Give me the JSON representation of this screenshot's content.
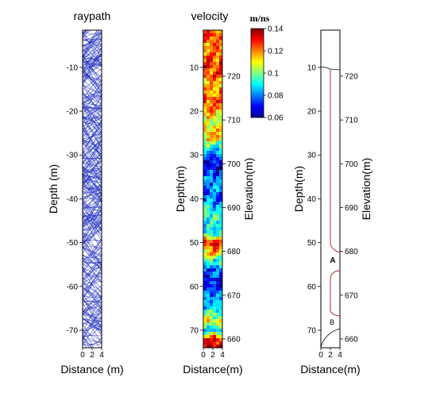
{
  "chart_data": [
    {
      "type": "line",
      "title": "raypath",
      "xlabel": "Distance (m)",
      "ylabel": "Depth (m)",
      "x_ticks": [
        "0",
        "2",
        "4"
      ],
      "y_ticks": [
        "-10",
        "-20",
        "-30",
        "-40",
        "-50",
        "-60",
        "-70"
      ],
      "xlim": [
        0,
        4
      ],
      "ylim": [
        -74,
        -1.5
      ],
      "line_color": "#1f2fbf",
      "description_of_marks": "dense crossing straight and curved ray paths between two boreholes"
    },
    {
      "type": "heatmap",
      "title": "velocity",
      "xlabel": "Distance(m)",
      "ylabel": "Depth(m)",
      "y2label": "Elevation(m)",
      "x_ticks": [
        "0",
        "2",
        "4"
      ],
      "y_ticks": [
        "10",
        "20",
        "30",
        "40",
        "50",
        "60",
        "70"
      ],
      "y2_ticks": [
        "720",
        "710",
        "700",
        "690",
        "680",
        "670",
        "660"
      ],
      "xlim": [
        0,
        4
      ],
      "ylim": [
        1.5,
        74
      ],
      "colorbar": {
        "unit": "m/ns",
        "ticks": [
          "0.14",
          "0.12",
          "0.1",
          "0.08",
          "0.06"
        ],
        "range": [
          0.06,
          0.14
        ]
      },
      "velocity_profile": [
        [
          2,
          0.125
        ],
        [
          6,
          0.118
        ],
        [
          10,
          0.128
        ],
        [
          14,
          0.115
        ],
        [
          18,
          0.125
        ],
        [
          22,
          0.105
        ],
        [
          26,
          0.118
        ],
        [
          28,
          0.095
        ],
        [
          30,
          0.075
        ],
        [
          32,
          0.068
        ],
        [
          36,
          0.082
        ],
        [
          40,
          0.078
        ],
        [
          44,
          0.095
        ],
        [
          48,
          0.088
        ],
        [
          50,
          0.132
        ],
        [
          53,
          0.105
        ],
        [
          56,
          0.075
        ],
        [
          59,
          0.07
        ],
        [
          62,
          0.078
        ],
        [
          65,
          0.09
        ],
        [
          68,
          0.108
        ],
        [
          70,
          0.085
        ],
        [
          72,
          0.13
        ],
        [
          74,
          0.135
        ]
      ]
    },
    {
      "type": "line",
      "xlabel": "Distance(m)",
      "ylabel": "Depth(m)",
      "y2label": "Elevation(m)",
      "x_ticks": [
        "0",
        "2",
        "4"
      ],
      "y_ticks": [
        "10",
        "20",
        "30",
        "40",
        "50",
        "60",
        "70"
      ],
      "y2_ticks": [
        "720",
        "710",
        "700",
        "690",
        "680",
        "670",
        "660"
      ],
      "annotations": [
        "A",
        "B"
      ],
      "line_colors": {
        "interpretation": "#9b1c1c",
        "boundary": "#000000"
      }
    }
  ]
}
